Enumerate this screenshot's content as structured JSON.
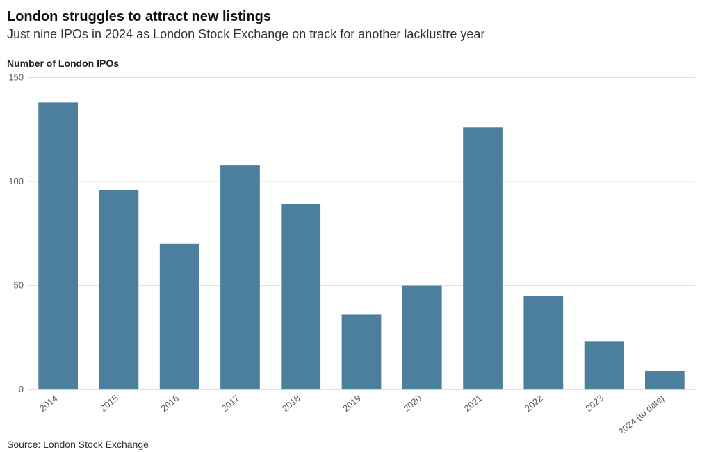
{
  "title": "London struggles to attract new listings",
  "subtitle": "Just nine IPOs in 2024 as London Stock Exchange on track for another lacklustre year",
  "axis_title": "Number of London IPOs",
  "source": "Source: London Stock Exchange",
  "chart": {
    "type": "bar",
    "categories": [
      "2014",
      "2015",
      "2016",
      "2017",
      "2018",
      "2019",
      "2020",
      "2021",
      "2022",
      "2023",
      "2024 (to date)"
    ],
    "values": [
      138,
      96,
      70,
      108,
      89,
      36,
      50,
      126,
      45,
      23,
      9
    ],
    "bar_color": "#4c7e9d",
    "background_color": "#ffffff",
    "grid_color": "#dddddd",
    "baseline_color": "#cccccc",
    "text_color": "#555555",
    "ylim": [
      0,
      150
    ],
    "ytick_step": 50,
    "bar_width_ratio": 0.65,
    "x_label_rotate_deg": -40,
    "title_fontsize": 20,
    "subtitle_fontsize": 18,
    "axis_title_fontsize": 14,
    "tick_fontsize": 13,
    "source_fontsize": 14
  }
}
